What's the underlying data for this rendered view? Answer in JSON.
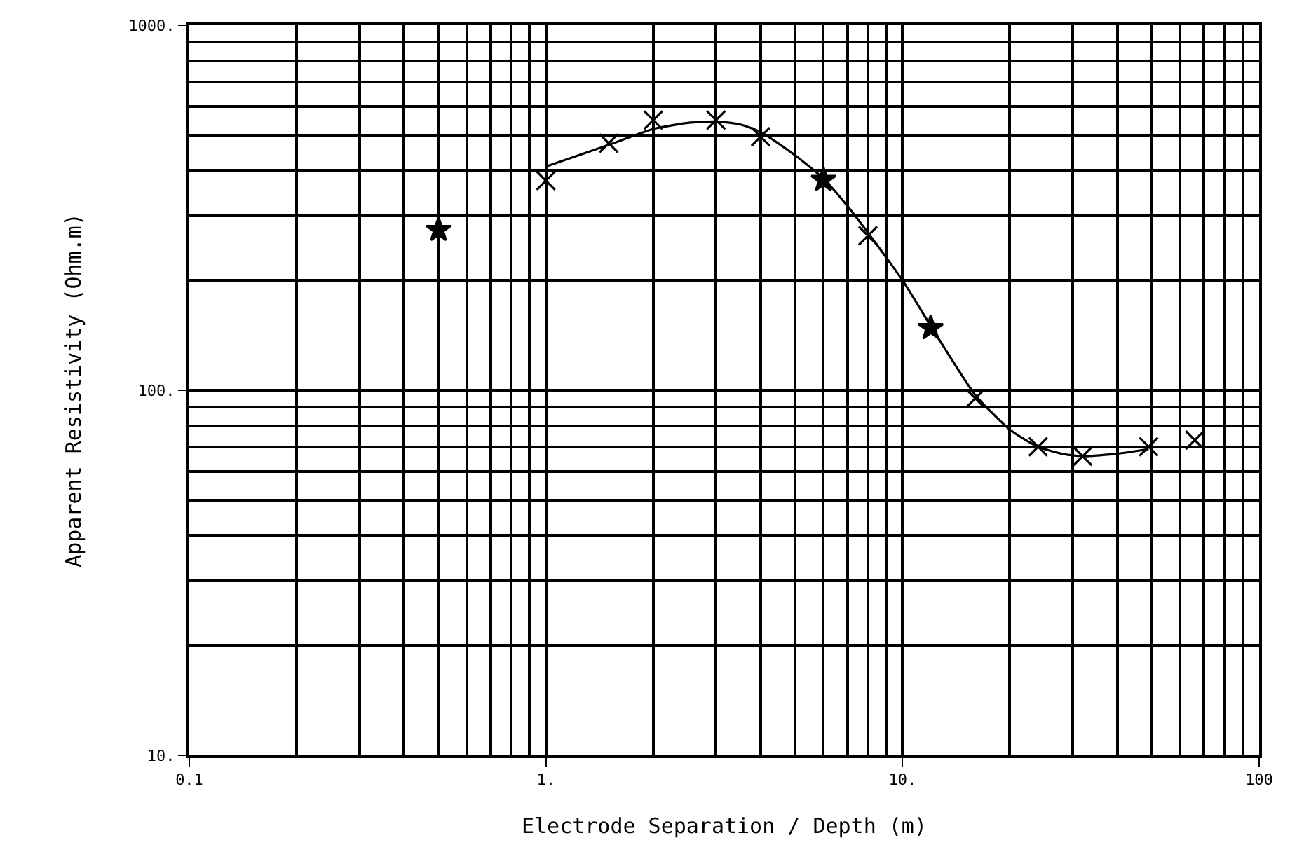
{
  "chart_data": {
    "type": "scatter",
    "xlabel": "Electrode Separation / Depth (m)",
    "ylabel": "Apparent Resistivity (Ohm.m)",
    "log": "xy",
    "grid": true,
    "legend": false,
    "xlim": [
      0.1,
      100
    ],
    "ylim": [
      10,
      1000
    ],
    "xticks": [
      {
        "value": 0.1,
        "label": "0.1"
      },
      {
        "value": 1,
        "label": "1."
      },
      {
        "value": 10,
        "label": "10."
      },
      {
        "value": 100,
        "label": "100"
      }
    ],
    "yticks": [
      {
        "value": 10,
        "label": "10."
      },
      {
        "value": 100,
        "label": "100."
      },
      {
        "value": 1000,
        "label": "1000."
      }
    ],
    "series": [
      {
        "marker": "cross",
        "color": "#000000",
        "x": [
          1,
          1.5,
          2,
          3,
          4,
          8,
          16,
          24,
          32,
          49,
          66
        ],
        "values": [
          375,
          475,
          550,
          550,
          495,
          265,
          95,
          70,
          66,
          70,
          73
        ]
      },
      {
        "marker": "star",
        "color": "#000000",
        "x": [
          0.5,
          6,
          12
        ],
        "values": [
          275,
          377,
          148
        ]
      },
      {
        "type": "line",
        "marker": "none",
        "line_style": "solid",
        "color": "#000000",
        "x": [
          1,
          1.5,
          2,
          2.5,
          3,
          3.5,
          4,
          5,
          6,
          7,
          8,
          10,
          12,
          14,
          16,
          20,
          24,
          28,
          32,
          40,
          49
        ],
        "values": [
          410,
          470,
          520,
          540,
          545,
          535,
          510,
          440,
          380,
          320,
          270,
          200,
          150,
          118,
          97,
          78,
          70,
          67,
          66,
          67,
          69
        ]
      }
    ]
  }
}
